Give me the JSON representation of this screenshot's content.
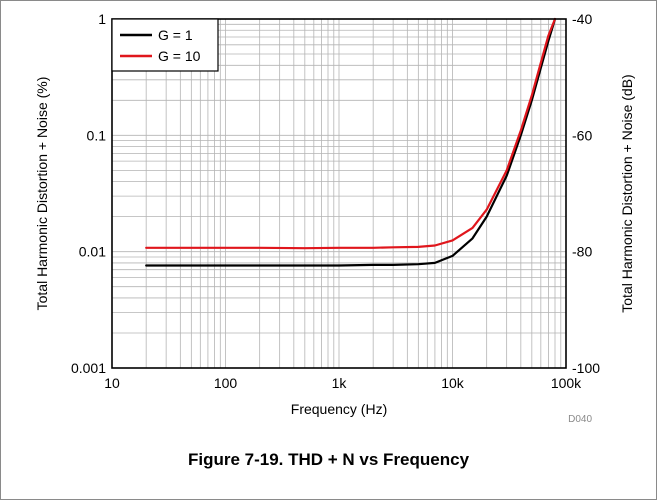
{
  "figure_caption": "Figure 7-19. THD + N vs Frequency",
  "figure_code": "D040",
  "colors": {
    "g1": "#000000",
    "g10": "#e0161c",
    "grid": "#b4b4b4"
  },
  "chart_data": {
    "type": "line",
    "title": "",
    "xlabel": "Frequency (Hz)",
    "ylabel": "Total Harmonic Distortion + Noise (%)",
    "ylabel_right": "Total Harmonic Distortion + Noise (dB)",
    "x_scale": "log",
    "y_scale": "log",
    "xlim": [
      10,
      100000
    ],
    "ylim": [
      0.001,
      1
    ],
    "y_right_lim": [
      -100,
      -40
    ],
    "grid": true,
    "legend_position": "top-left",
    "x_ticks": [
      "10",
      "100",
      "1k",
      "10k",
      "100k"
    ],
    "y_ticks": [
      "0.001",
      "0.01",
      "0.1",
      "1"
    ],
    "y_right_ticks": [
      "-100",
      "-80",
      "-60",
      "-40"
    ],
    "series": [
      {
        "name": "G = 1",
        "color": "#000000",
        "x": [
          20,
          50,
          100,
          200,
          500,
          1000,
          2000,
          3000,
          5000,
          7000,
          10000,
          15000,
          20000,
          30000,
          40000,
          50000,
          60000,
          70000,
          80000
        ],
        "y": [
          0.0076,
          0.0076,
          0.0076,
          0.0076,
          0.0076,
          0.0076,
          0.0077,
          0.0077,
          0.0078,
          0.008,
          0.0092,
          0.013,
          0.02,
          0.045,
          0.1,
          0.2,
          0.38,
          0.65,
          1.0
        ]
      },
      {
        "name": "G = 10",
        "color": "#e0161c",
        "x": [
          20,
          50,
          100,
          200,
          500,
          1000,
          2000,
          3000,
          5000,
          7000,
          10000,
          15000,
          20000,
          30000,
          40000,
          50000,
          60000,
          70000,
          80000
        ],
        "y": [
          0.0108,
          0.0108,
          0.0108,
          0.0108,
          0.0107,
          0.0108,
          0.0108,
          0.0109,
          0.011,
          0.0113,
          0.0125,
          0.016,
          0.023,
          0.05,
          0.11,
          0.22,
          0.42,
          0.72,
          1.0
        ]
      }
    ]
  }
}
